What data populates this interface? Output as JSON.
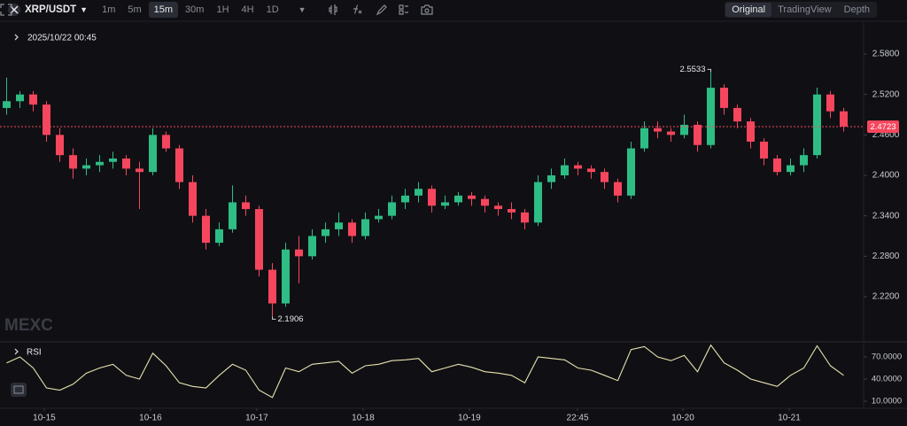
{
  "toolbar": {
    "symbol": "XRP/USDT",
    "intervals": [
      "1m",
      "5m",
      "15m",
      "30m",
      "1H",
      "4H",
      "1D"
    ],
    "active_interval": 2,
    "views": [
      "Original",
      "TradingView",
      "Depth"
    ],
    "active_view": 0
  },
  "chart_data": [
    {
      "type": "candlestick",
      "title": "2025/10/22 00:45",
      "watermark": "MEXC",
      "x": [
        0,
        1,
        2,
        3,
        4,
        5,
        6,
        7,
        8,
        9,
        10,
        11,
        12,
        13,
        14,
        15,
        16,
        17,
        18,
        19,
        20,
        21,
        22,
        23,
        24,
        25,
        26,
        27,
        28,
        29,
        30,
        31,
        32,
        33,
        34,
        35,
        36,
        37,
        38,
        39,
        40,
        41,
        42,
        43,
        44,
        45,
        46,
        47,
        48,
        49,
        50,
        51,
        52,
        53,
        54,
        55,
        56,
        57,
        58,
        59,
        60,
        61,
        62,
        63
      ],
      "open": [
        2.5,
        2.51,
        2.52,
        2.505,
        2.46,
        2.43,
        2.41,
        2.415,
        2.42,
        2.425,
        2.41,
        2.405,
        2.46,
        2.44,
        2.39,
        2.34,
        2.3,
        2.32,
        2.36,
        2.35,
        2.26,
        2.21,
        2.29,
        2.28,
        2.31,
        2.32,
        2.33,
        2.31,
        2.335,
        2.34,
        2.36,
        2.37,
        2.38,
        2.355,
        2.36,
        2.37,
        2.365,
        2.355,
        2.35,
        2.345,
        2.33,
        2.39,
        2.4,
        2.415,
        2.41,
        2.405,
        2.39,
        2.37,
        2.44,
        2.47,
        2.465,
        2.46,
        2.475,
        2.445,
        2.53,
        2.5,
        2.48,
        2.45,
        2.425,
        2.405,
        2.415,
        2.43,
        2.52,
        2.495
      ],
      "high": [
        2.545,
        2.525,
        2.525,
        2.51,
        2.47,
        2.44,
        2.425,
        2.43,
        2.435,
        2.43,
        2.42,
        2.47,
        2.465,
        2.445,
        2.4,
        2.35,
        2.33,
        2.385,
        2.37,
        2.355,
        2.27,
        2.3,
        2.31,
        2.32,
        2.33,
        2.345,
        2.335,
        2.345,
        2.35,
        2.37,
        2.38,
        2.39,
        2.385,
        2.37,
        2.375,
        2.375,
        2.37,
        2.36,
        2.36,
        2.35,
        2.4,
        2.41,
        2.425,
        2.42,
        2.415,
        2.41,
        2.395,
        2.45,
        2.48,
        2.48,
        2.47,
        2.49,
        2.48,
        2.5533,
        2.535,
        2.505,
        2.485,
        2.455,
        2.43,
        2.425,
        2.44,
        2.53,
        2.525,
        2.5
      ],
      "low": [
        2.49,
        2.5,
        2.495,
        2.45,
        2.42,
        2.395,
        2.4,
        2.405,
        2.41,
        2.4,
        2.35,
        2.4,
        2.435,
        2.38,
        2.33,
        2.29,
        2.295,
        2.315,
        2.34,
        2.25,
        2.1906,
        2.205,
        2.24,
        2.275,
        2.3,
        2.31,
        2.3,
        2.305,
        2.33,
        2.335,
        2.35,
        2.36,
        2.345,
        2.35,
        2.355,
        2.355,
        2.345,
        2.34,
        2.335,
        2.32,
        2.325,
        2.38,
        2.395,
        2.4,
        2.395,
        2.38,
        2.36,
        2.365,
        2.435,
        2.455,
        2.45,
        2.455,
        2.435,
        2.44,
        2.49,
        2.47,
        2.44,
        2.415,
        2.4,
        2.4,
        2.405,
        2.425,
        2.485,
        2.465
      ],
      "close": [
        2.51,
        2.52,
        2.505,
        2.46,
        2.43,
        2.41,
        2.415,
        2.42,
        2.425,
        2.41,
        2.405,
        2.46,
        2.44,
        2.39,
        2.34,
        2.3,
        2.32,
        2.36,
        2.35,
        2.26,
        2.21,
        2.29,
        2.28,
        2.31,
        2.32,
        2.33,
        2.31,
        2.335,
        2.34,
        2.36,
        2.37,
        2.38,
        2.355,
        2.36,
        2.37,
        2.365,
        2.355,
        2.35,
        2.345,
        2.33,
        2.39,
        2.4,
        2.415,
        2.41,
        2.405,
        2.39,
        2.37,
        2.44,
        2.47,
        2.465,
        2.46,
        2.475,
        2.445,
        2.53,
        2.5,
        2.48,
        2.45,
        2.425,
        2.405,
        2.415,
        2.43,
        2.52,
        2.495,
        2.4723
      ],
      "up_color": "#2ebd85",
      "down_color": "#f6465d",
      "high_index": 53,
      "low_index": 20,
      "xlim": [
        -0.5,
        64.5
      ],
      "xticks": [
        {
          "value": 2.83,
          "label": "10-15"
        },
        {
          "value": 10.83,
          "label": "10-16"
        },
        {
          "value": 18.83,
          "label": "10-17"
        },
        {
          "value": 26.83,
          "label": "10-18"
        },
        {
          "value": 34.83,
          "label": "10-19"
        },
        {
          "value": 42.97,
          "label": "22:45"
        },
        {
          "value": 50.9,
          "label": "10-20"
        },
        {
          "value": 58.9,
          "label": "10-21"
        }
      ],
      "ylim": [
        2.1543,
        2.6273
      ],
      "yticks": [
        {
          "value": 2.22,
          "label": "2.2200"
        },
        {
          "value": 2.28,
          "label": "2.2800"
        },
        {
          "value": 2.34,
          "label": "2.3400"
        },
        {
          "value": 2.4,
          "label": "2.4000"
        },
        {
          "value": 2.46,
          "label": "2.4600"
        },
        {
          "value": 2.52,
          "label": "2.5200"
        },
        {
          "value": 2.58,
          "label": "2.5800"
        }
      ],
      "grid": false
    },
    {
      "type": "line",
      "title": "RSI",
      "color": "#e8e3b0",
      "x": [
        0,
        1,
        2,
        3,
        4,
        5,
        6,
        7,
        8,
        9,
        10,
        11,
        12,
        13,
        14,
        15,
        16,
        17,
        18,
        19,
        20,
        21,
        22,
        23,
        24,
        25,
        26,
        27,
        28,
        29,
        30,
        31,
        32,
        33,
        34,
        35,
        36,
        37,
        38,
        39,
        40,
        41,
        42,
        43,
        44,
        45,
        46,
        47,
        48,
        49,
        50,
        51,
        52,
        53,
        54,
        55,
        56,
        57,
        58,
        59,
        60,
        61,
        62,
        63
      ],
      "values": [
        62,
        70,
        55,
        28,
        25,
        33,
        48,
        55,
        60,
        45,
        40,
        75,
        58,
        35,
        30,
        28,
        45,
        60,
        52,
        25,
        15,
        55,
        50,
        60,
        62,
        64,
        48,
        58,
        60,
        65,
        66,
        68,
        50,
        55,
        60,
        56,
        50,
        48,
        45,
        35,
        70,
        68,
        66,
        55,
        52,
        45,
        38,
        80,
        84,
        70,
        65,
        72,
        50,
        86,
        62,
        52,
        40,
        35,
        30,
        45,
        55,
        85,
        58,
        45
      ],
      "ylim": [
        1.6,
        89.2
      ],
      "yticks": [
        {
          "value": 10,
          "label": "10.0000"
        },
        {
          "value": 40,
          "label": "40.0000"
        },
        {
          "value": 70,
          "label": "70.0000"
        }
      ]
    }
  ]
}
